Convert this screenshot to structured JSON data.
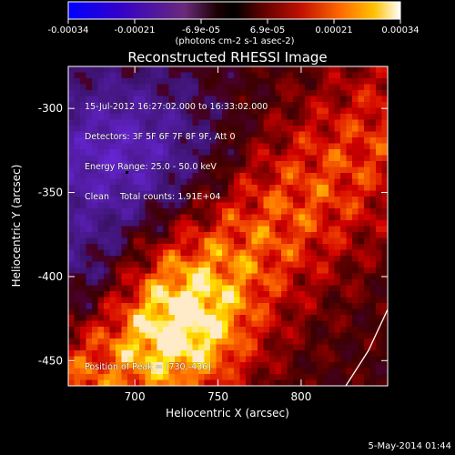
{
  "colorbar": {
    "ticks": [
      "-0.00034",
      "-0.00021",
      "-6.9e-05",
      "6.9e-05",
      "0.00021",
      "0.00034"
    ],
    "unit_label": "(photons cm-2 s-1 asec-2)"
  },
  "chart_data": {
    "type": "heatmap",
    "title": "Reconstructed RHESSI Image",
    "xlabel": "Heliocentric X (arcsec)",
    "ylabel": "Heliocentric Y (arcsec)",
    "xlim": [
      660,
      852
    ],
    "ylim": [
      -465,
      -275
    ],
    "x_ticks": [
      700,
      750,
      800
    ],
    "y_ticks": [
      -300,
      -350,
      -400,
      -450
    ],
    "value_range": [
      -0.00034,
      0.00034
    ],
    "peak_position": [
      730,
      -436
    ],
    "solar_limb": "white curve in lower-right corner"
  },
  "annotations": {
    "time_range": "15-Jul-2012 16:27:02.000 to 16:33:02.000",
    "detectors": "Detectors: 3F 5F 6F 7F 8F 9F, Att 0",
    "energy": "Energy Range: 25.0 - 50.0 keV",
    "method": "Clean    Total counts: 1.91E+04",
    "peak": "Position of Peak = [730,-436]"
  },
  "footer": {
    "date": "5-May-2014 01:44"
  }
}
